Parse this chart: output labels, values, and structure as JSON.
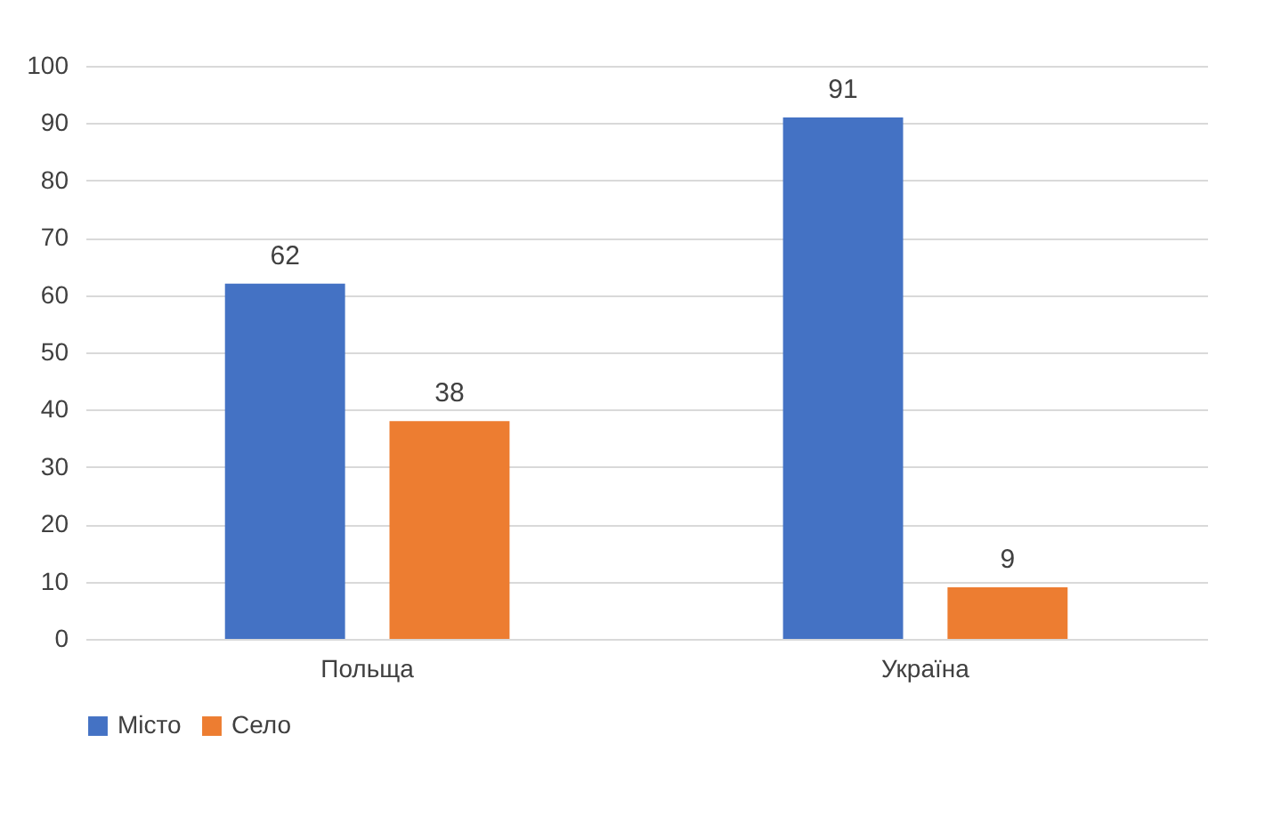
{
  "chart_data": {
    "type": "bar",
    "categories": [
      "Польща",
      "Україна"
    ],
    "series": [
      {
        "name": "Місто",
        "color": "#4472c4",
        "values": [
          62,
          91
        ]
      },
      {
        "name": "Село",
        "color": "#ed7d31",
        "values": [
          38,
          9
        ]
      }
    ],
    "ylim": [
      0,
      100
    ],
    "yticks": [
      0,
      10,
      20,
      30,
      40,
      50,
      60,
      70,
      80,
      90,
      100
    ],
    "grid": "y",
    "legend": "bottom",
    "data_labels": true
  }
}
